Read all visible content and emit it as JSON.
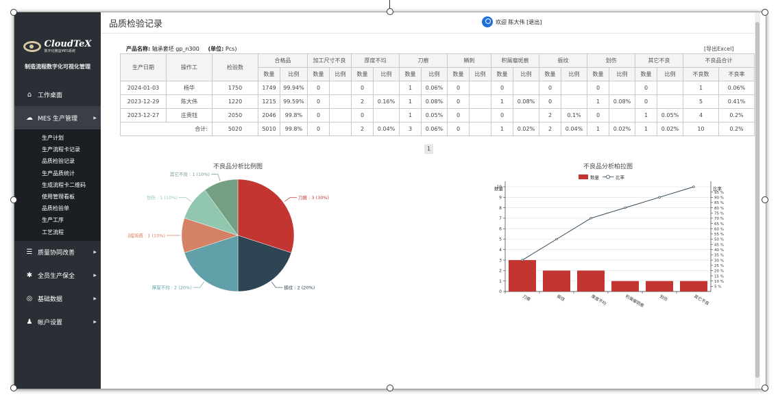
{
  "app": {
    "logo_main": "CloudTeX",
    "logo_sub": "数字化精益MES系统",
    "slogan": "制造流程数字化可视化管理"
  },
  "sidebar": {
    "items": [
      {
        "label": "工作桌面",
        "icon": "home-icon"
      },
      {
        "label": "MES 生产管理",
        "icon": "cloud-icon"
      },
      {
        "label": "质量协同改善",
        "icon": "database-icon"
      },
      {
        "label": "全员生产保全",
        "icon": "gear-icon"
      },
      {
        "label": "基础数据",
        "icon": "target-icon"
      },
      {
        "label": "帐户设置",
        "icon": "user-settings-icon"
      }
    ],
    "sub_items": [
      "生产计划",
      "生产流程卡记录",
      "品质检验记录",
      "生产品质统计",
      "生成流程卡二维码",
      "使用管理看板",
      "品质检验单",
      "生产工序",
      "工艺流程"
    ]
  },
  "header": {
    "title": "品质检验记录",
    "welcome": "欢迎 陈大伟 [退出]"
  },
  "product": {
    "name_label": "产品名称:",
    "name_value": "轴承套坯 gp_n300",
    "unit_label": "(单位:",
    "unit_value": "Pcs)"
  },
  "export_label": "[导出Excel]",
  "table": {
    "h_date": "生产日期",
    "h_operator": "操作工",
    "h_count": "检验数",
    "groups": [
      "合格品",
      "加工尺寸不良",
      "厚度不均",
      "刀痕",
      "鳞刺",
      "积屑瘤斑痕",
      "振纹",
      "划伤",
      "其它不良",
      "不良品合计"
    ],
    "sub_qty": "数量",
    "sub_ratio": "比例",
    "sub_defects": "不良数",
    "sub_rate": "不良率",
    "rows": [
      [
        "2024-01-03",
        "杨华",
        "1750",
        "1749",
        "99.94%",
        "0",
        "",
        "0",
        "",
        "1",
        "0.06%",
        "0",
        "",
        "0",
        "",
        "0",
        "",
        "0",
        "",
        "0",
        "",
        "1",
        "0.06%"
      ],
      [
        "2023-12-29",
        "陈大伟",
        "1220",
        "1215",
        "99.59%",
        "0",
        "",
        "2",
        "0.16%",
        "1",
        "0.08%",
        "0",
        "",
        "1",
        "0.08%",
        "0",
        "",
        "1",
        "0.08%",
        "0",
        "",
        "5",
        "0.41%"
      ],
      [
        "2023-12-27",
        "庄贵钰",
        "2050",
        "2046",
        "99.8%",
        "0",
        "",
        "0",
        "",
        "1",
        "0.05%",
        "0",
        "",
        "0",
        "",
        "2",
        "0.1%",
        "0",
        "",
        "1",
        "0.05%",
        "4",
        "0.2%"
      ]
    ],
    "total_label": "合计:",
    "total": [
      "5020",
      "5010",
      "99.8%",
      "0",
      "",
      "2",
      "0.04%",
      "3",
      "0.06%",
      "0",
      "",
      "1",
      "0.02%",
      "2",
      "0.04%",
      "1",
      "0.02%",
      "1",
      "0.02%",
      "10",
      "0.2%"
    ]
  },
  "pager": {
    "page": "1"
  },
  "chart_data": [
    {
      "type": "pie",
      "title": "不良品分析比例图",
      "slices": [
        {
          "label": "刀痕 : 3 (30%)",
          "value": 3,
          "color": "#c23531"
        },
        {
          "label": "振纹 : 2 (20%)",
          "value": 2,
          "color": "#2f4554"
        },
        {
          "label": "厚度不均 : 2 (20%)",
          "value": 2,
          "color": "#61a0a8"
        },
        {
          "label": "积屑瘤斑痕 : 1 (10%)",
          "value": 1,
          "color": "#d48265"
        },
        {
          "label": "划伤 : 1 (10%)",
          "value": 1,
          "color": "#91c7ae"
        },
        {
          "label": "其它不良 : 1 (10%)",
          "value": 1,
          "color": "#749f83"
        }
      ]
    },
    {
      "type": "bar",
      "title": "不良品分析柏拉图",
      "ylabel": "数量",
      "y2label": "比率",
      "legend": [
        "数量",
        "比率"
      ],
      "categories": [
        "刀痕",
        "振纹",
        "厚度不均",
        "积屑瘤斑痕",
        "划伤",
        "其它不良"
      ],
      "values": [
        3,
        2,
        2,
        1,
        1,
        1
      ],
      "cumulative_percent": [
        30,
        50,
        70,
        80,
        90,
        100
      ],
      "ylim": [
        0,
        10
      ],
      "y_ticks": [
        "0",
        "1",
        "2",
        "3",
        "4",
        "5",
        "6",
        "7",
        "8",
        "9",
        "10"
      ],
      "y2_ticks": [
        "5 %",
        "10 %",
        "15 %",
        "20 %",
        "25 %",
        "30 %",
        "35 %",
        "40 %",
        "45 %",
        "50 %",
        "55 %",
        "60 %",
        "65 %",
        "70 %",
        "75 %",
        "80 %",
        "85 %",
        "90 %",
        "95 %"
      ],
      "bar_color": "#c23531",
      "line_color": "#2f4554"
    }
  ]
}
